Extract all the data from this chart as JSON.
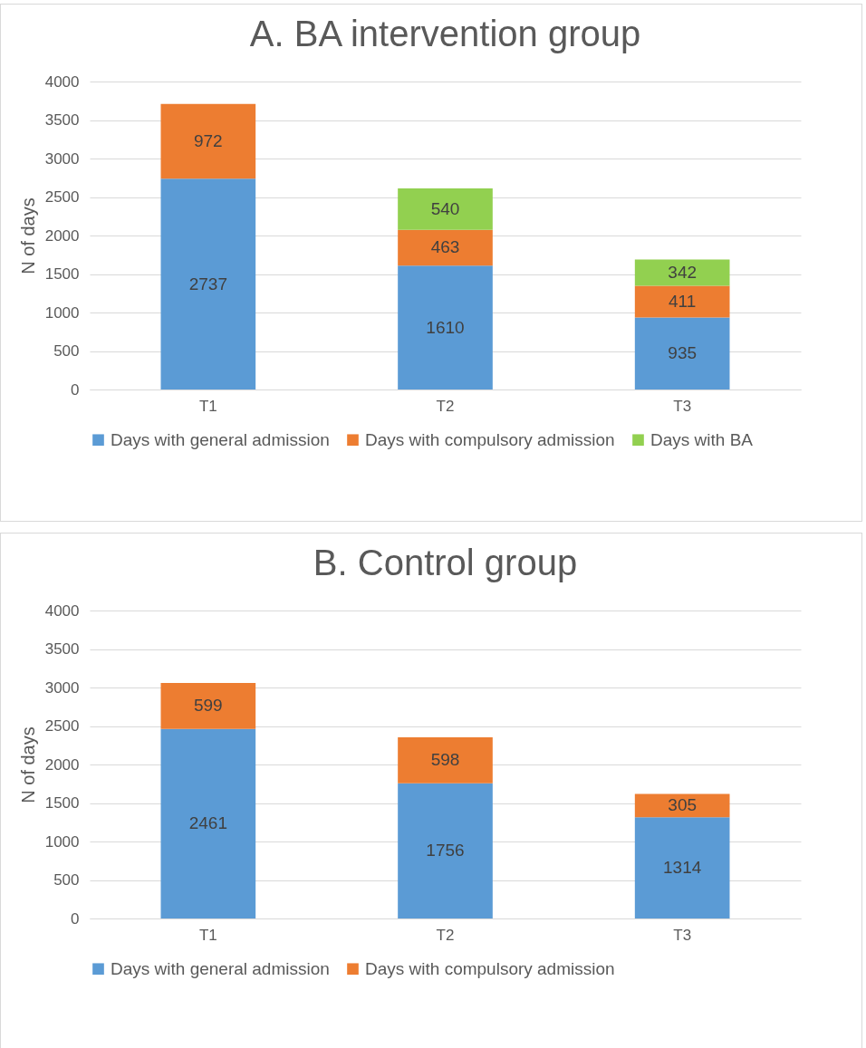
{
  "chart_data": [
    {
      "type": "bar",
      "title": "A. BA intervention group",
      "ylabel": "N of days",
      "categories": [
        "T1",
        "T2",
        "T3"
      ],
      "stacked": true,
      "ylim": [
        0,
        4000
      ],
      "yticks": [
        0,
        500,
        1000,
        1500,
        2000,
        2500,
        3000,
        3500,
        4000
      ],
      "grid": "y",
      "legend": "bottom",
      "data_labels": true,
      "series": [
        {
          "name": "Days with general admission",
          "color": "#5b9bd5",
          "values": [
            2737,
            1610,
            935
          ]
        },
        {
          "name": "Days with compulsory admission",
          "color": "#ed7d31",
          "values": [
            972,
            463,
            411
          ]
        },
        {
          "name": "Days with BA",
          "color": "#92d050",
          "values": [
            null,
            540,
            342
          ]
        }
      ]
    },
    {
      "type": "bar",
      "title": "B. Control group",
      "ylabel": "N of days",
      "categories": [
        "T1",
        "T2",
        "T3"
      ],
      "stacked": true,
      "ylim": [
        0,
        4000
      ],
      "yticks": [
        0,
        500,
        1000,
        1500,
        2000,
        2500,
        3000,
        3500,
        4000
      ],
      "grid": "y",
      "legend": "bottom",
      "data_labels": true,
      "series": [
        {
          "name": "Days with general admission",
          "color": "#5b9bd5",
          "values": [
            2461,
            1756,
            1314
          ]
        },
        {
          "name": "Days with compulsory admission",
          "color": "#ed7d31",
          "values": [
            599,
            598,
            305
          ]
        }
      ]
    }
  ]
}
